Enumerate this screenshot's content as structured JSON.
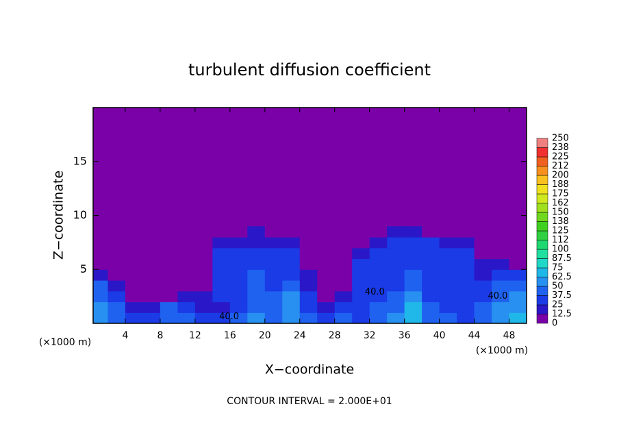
{
  "chart_data": {
    "type": "contour",
    "title": "turbulent diffusion coefficient",
    "xlabel": "X−coordinate",
    "ylabel": "Z−coordinate",
    "x_unit": "(×1000 m)",
    "footer": "CONTOUR INTERVAL = 2.000E+01",
    "xlim": [
      0,
      50
    ],
    "ylim": [
      0,
      20
    ],
    "xticks": [
      4,
      8,
      12,
      16,
      20,
      24,
      28,
      32,
      36,
      40,
      44,
      48
    ],
    "yticks": [
      5,
      10,
      15
    ],
    "x": [
      1,
      3,
      5,
      7,
      9,
      11,
      13,
      15,
      17,
      19,
      21,
      23,
      25,
      27,
      29,
      31,
      33,
      35,
      37,
      39,
      41,
      43,
      45,
      47,
      49
    ],
    "z": [
      0.5,
      1.5,
      2.5,
      3.5,
      4.5,
      5.5,
      6.5,
      7.5,
      8.5
    ],
    "values": [
      [
        55,
        45,
        30,
        35,
        40,
        45,
        30,
        30,
        40,
        55,
        45,
        60,
        45,
        35,
        40,
        30,
        45,
        55,
        70,
        45,
        40,
        35,
        45,
        55,
        65
      ],
      [
        50,
        40,
        20,
        15,
        45,
        30,
        20,
        20,
        35,
        45,
        40,
        55,
        30,
        20,
        30,
        35,
        40,
        45,
        65,
        40,
        35,
        30,
        40,
        50,
        60
      ],
      [
        45,
        35,
        10,
        5,
        10,
        20,
        15,
        25,
        35,
        40,
        40,
        50,
        25,
        10,
        15,
        30,
        35,
        40,
        55,
        35,
        30,
        30,
        35,
        45,
        55
      ],
      [
        40,
        20,
        5,
        5,
        5,
        10,
        10,
        30,
        35,
        40,
        35,
        40,
        20,
        5,
        10,
        30,
        35,
        35,
        45,
        35,
        30,
        30,
        25,
        40,
        45
      ],
      [
        20,
        10,
        5,
        5,
        5,
        5,
        10,
        30,
        35,
        40,
        35,
        35,
        15,
        5,
        5,
        30,
        35,
        35,
        40,
        35,
        30,
        30,
        20,
        30,
        35
      ],
      [
        10,
        5,
        5,
        5,
        5,
        5,
        5,
        30,
        35,
        35,
        35,
        30,
        10,
        5,
        5,
        25,
        35,
        35,
        35,
        35,
        30,
        30,
        15,
        15,
        10
      ],
      [
        5,
        5,
        5,
        5,
        5,
        5,
        5,
        25,
        30,
        30,
        30,
        25,
        5,
        5,
        5,
        20,
        30,
        30,
        35,
        30,
        30,
        25,
        10,
        5,
        5
      ],
      [
        5,
        5,
        5,
        5,
        5,
        5,
        5,
        15,
        20,
        20,
        20,
        15,
        5,
        5,
        5,
        10,
        20,
        25,
        25,
        25,
        20,
        15,
        5,
        5,
        5
      ],
      [
        5,
        5,
        5,
        5,
        5,
        5,
        5,
        5,
        10,
        15,
        10,
        5,
        5,
        5,
        5,
        5,
        10,
        15,
        15,
        10,
        5,
        5,
        5,
        5,
        5
      ]
    ],
    "levels": [
      0,
      12.5,
      25,
      37.5,
      50,
      62.5,
      75,
      87.5,
      100,
      112,
      125,
      138,
      150,
      162,
      175,
      188,
      200,
      212,
      225,
      238,
      250
    ],
    "colors": [
      "#7a00a8",
      "#2a18c8",
      "#1a3be6",
      "#1f62f0",
      "#2890f0",
      "#20b8e8",
      "#20d8c8",
      "#20e0a0",
      "#20d870",
      "#30d040",
      "#40d020",
      "#70d820",
      "#a0e020",
      "#d0e820",
      "#f0e020",
      "#f8c020",
      "#f89020",
      "#f06020",
      "#f03030",
      "#f08080"
    ],
    "contour_labels": [
      {
        "text": "40.0",
        "x": 15.9,
        "z": 0.6
      },
      {
        "text": "40.0",
        "x": 32.6,
        "z": 2.9
      },
      {
        "text": "40.0",
        "x": 46.7,
        "z": 2.5
      }
    ]
  }
}
